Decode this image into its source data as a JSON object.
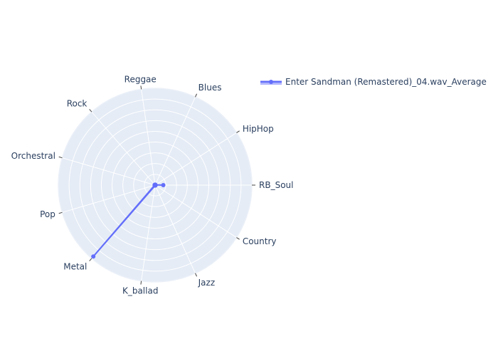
{
  "chart_data": {
    "type": "radar",
    "categories": [
      "RB_Soul",
      "HipHop",
      "Blues",
      "Reggae",
      "Rock",
      "Orchestral",
      "Pop",
      "Metal",
      "K_ballad",
      "Jazz",
      "Country"
    ],
    "series": [
      {
        "name": "Enter Sandman (Remastered)_04.wav_Average",
        "values": [
          0.085,
          0.005,
          0.005,
          0.005,
          0.005,
          0.005,
          0.005,
          0.975,
          0.005,
          0.005,
          0.005
        ],
        "color": "#636efa"
      }
    ],
    "radial_range": [
      0,
      1
    ],
    "angular_direction": "counterclockwise",
    "legend_position": "top-right",
    "grid": true,
    "colors": {
      "polar_bg": "#e5ecf6",
      "grid": "#ffffff",
      "text": "#2a3f5f"
    }
  }
}
